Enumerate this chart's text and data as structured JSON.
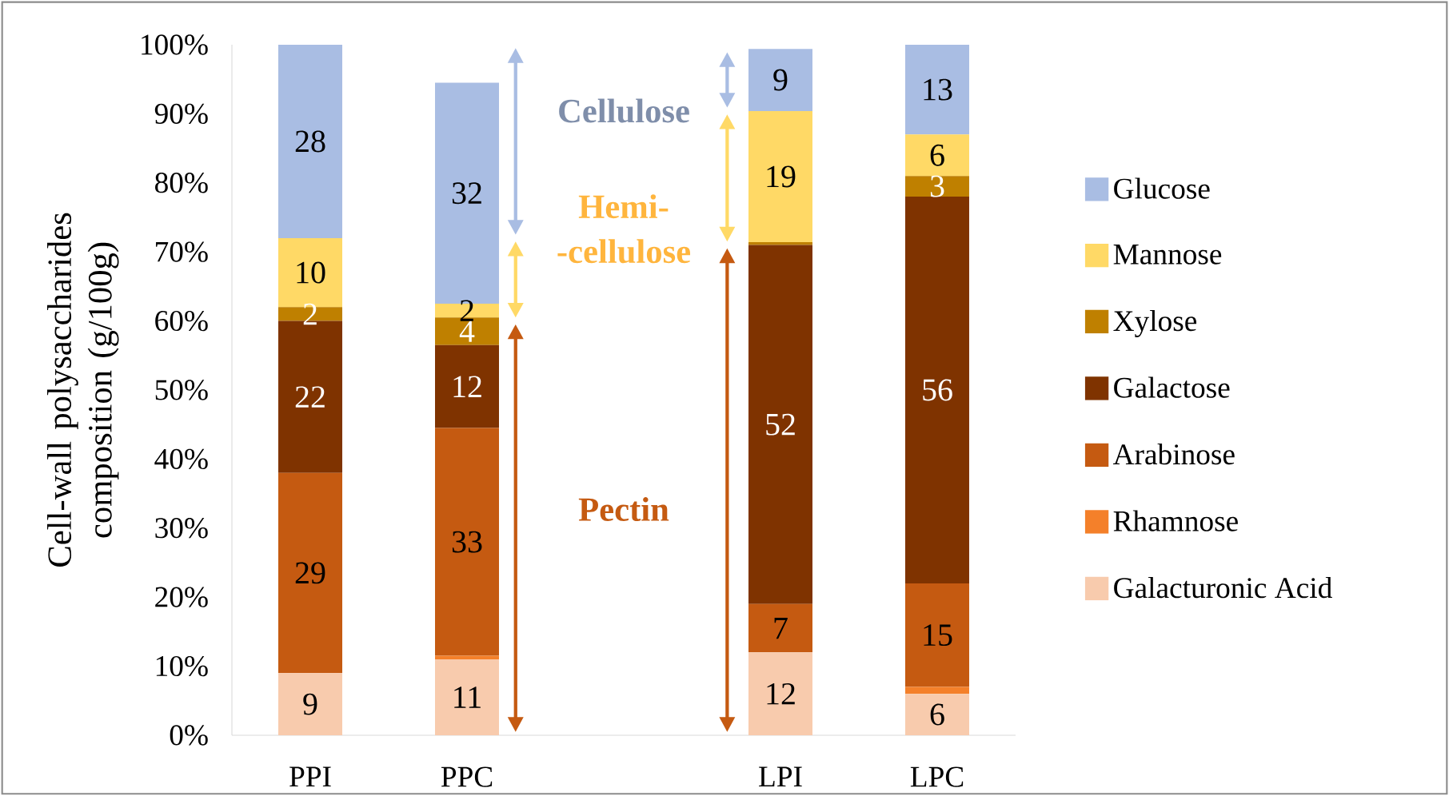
{
  "chart_data": {
    "type": "bar",
    "stacked": true,
    "categories": [
      "PPI",
      "PPC",
      null,
      "LPI",
      "LPC"
    ],
    "ylabel": "Cell-wall polysaccharides composition (g/100g)",
    "ylim": [
      0,
      100
    ],
    "yticks": [
      {
        "value": 0,
        "label": "0%"
      },
      {
        "value": 10,
        "label": "10%"
      },
      {
        "value": 20,
        "label": "20%"
      },
      {
        "value": 30,
        "label": "30%"
      },
      {
        "value": 40,
        "label": "40%"
      },
      {
        "value": 50,
        "label": "50%"
      },
      {
        "value": 60,
        "label": "60%"
      },
      {
        "value": 70,
        "label": "70%"
      },
      {
        "value": 80,
        "label": "80%"
      },
      {
        "value": 90,
        "label": "90%"
      },
      {
        "value": 100,
        "label": "100%"
      }
    ],
    "series": [
      {
        "name": "Galacturonic Acid",
        "color": "#f8cbad",
        "values": [
          9,
          11,
          null,
          12,
          6
        ],
        "value_labels": [
          "9",
          "11",
          null,
          "12",
          "6"
        ]
      },
      {
        "name": "Rhamnose",
        "color": "#f4802a",
        "values": [
          0,
          0.5,
          null,
          0,
          1.0
        ],
        "value_labels": [
          null,
          null,
          null,
          null,
          null
        ]
      },
      {
        "name": "Arabinose",
        "color": "#c55a11",
        "values": [
          29,
          33,
          null,
          7,
          15
        ],
        "value_labels": [
          "29",
          "33",
          null,
          "7",
          "15"
        ]
      },
      {
        "name": "Galactose",
        "color": "#7f3300",
        "values": [
          22,
          12,
          null,
          52,
          56
        ],
        "value_labels": [
          "22",
          "12",
          null,
          "52",
          "56"
        ]
      },
      {
        "name": "Xylose",
        "color": "#bf8000",
        "values": [
          2,
          4,
          null,
          0.4,
          3
        ],
        "value_labels": [
          "2",
          "4",
          null,
          null,
          "3"
        ]
      },
      {
        "name": "Mannose",
        "color": "#ffd966",
        "values": [
          10,
          2,
          null,
          19,
          6
        ],
        "value_labels": [
          "10",
          "2",
          null,
          "19",
          "6"
        ]
      },
      {
        "name": "Glucose",
        "color": "#a9bde3",
        "values": [
          28,
          32,
          null,
          9,
          13
        ],
        "value_labels": [
          "28",
          "32",
          null,
          "9",
          "13"
        ]
      }
    ],
    "annotations": [
      "Cellulose",
      "Hemi- -cellulose",
      "Pectin"
    ],
    "legend": "right",
    "grid": false
  }
}
